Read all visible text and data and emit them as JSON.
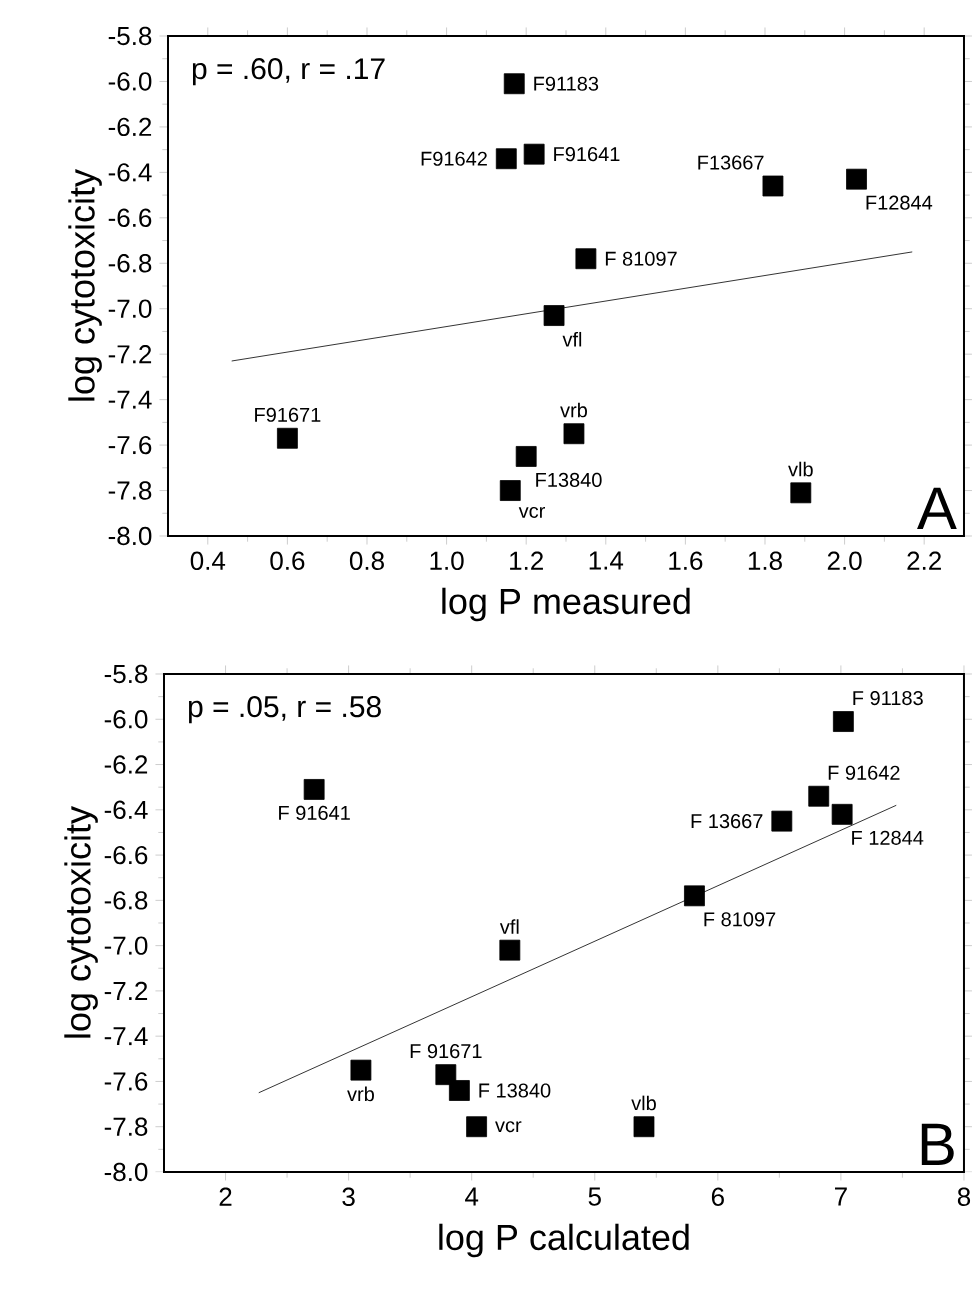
{
  "chart_data": [
    {
      "type": "scatter",
      "xlabel": "log P measured",
      "ylabel": "log cytotoxicity",
      "xlim": [
        0.3,
        2.3
      ],
      "xticks": [
        {
          "value": 0.4,
          "label": "0.4"
        },
        {
          "value": 0.6,
          "label": "0.6"
        },
        {
          "value": 0.8,
          "label": "0.8"
        },
        {
          "value": 1.0,
          "label": "1.0"
        },
        {
          "value": 1.2,
          "label": "1.2"
        },
        {
          "value": 1.4,
          "label": "1.4"
        },
        {
          "value": 1.6,
          "label": "1.6"
        },
        {
          "value": 1.8,
          "label": "1.8"
        },
        {
          "value": 2.0,
          "label": "2.0"
        },
        {
          "value": 2.2,
          "label": "2.2"
        }
      ],
      "ylim": [
        -8.0,
        -5.8
      ],
      "yticks": [
        {
          "value": -8.0,
          "label": "-8.0"
        },
        {
          "value": -7.8,
          "label": "-7.8"
        },
        {
          "value": -7.6,
          "label": "-7.6"
        },
        {
          "value": -7.4,
          "label": "-7.4"
        },
        {
          "value": -7.2,
          "label": "-7.2"
        },
        {
          "value": -7.0,
          "label": "-7.0"
        },
        {
          "value": -6.8,
          "label": "-6.8"
        },
        {
          "value": -6.6,
          "label": "-6.6"
        },
        {
          "value": -6.4,
          "label": "-6.4"
        },
        {
          "value": -6.2,
          "label": "-6.2"
        },
        {
          "value": -6.0,
          "label": "-6.0"
        },
        {
          "value": -5.8,
          "label": "-5.8"
        }
      ],
      "marker": "square",
      "series": [
        {
          "color": "#000000",
          "x": [
            1.17,
            1.15,
            1.22,
            1.82,
            2.03,
            1.35,
            1.27,
            0.6,
            1.32,
            1.2,
            1.16,
            1.89
          ],
          "values": [
            -6.01,
            -6.34,
            -6.32,
            -6.46,
            -6.43,
            -6.78,
            -7.03,
            -7.57,
            -7.55,
            -7.65,
            -7.8,
            -7.81
          ]
        },
        {
          "type": "line",
          "color": "#000000",
          "marker": "none",
          "x": [
            0.46,
            2.17
          ],
          "values": [
            -7.23,
            -6.75
          ]
        }
      ],
      "annotations": [
        "p = .60, r = .17",
        "A",
        {
          "text": "F91183",
          "x": 1.17,
          "y": -6.01
        },
        {
          "text": "F91642",
          "x": 1.15,
          "y": -6.34
        },
        {
          "text": "F91641",
          "x": 1.22,
          "y": -6.32
        },
        {
          "text": "F13667",
          "x": 1.82,
          "y": -6.46
        },
        {
          "text": "F12844",
          "x": 2.03,
          "y": -6.43
        },
        {
          "text": "F 81097",
          "x": 1.35,
          "y": -6.78
        },
        {
          "text": "vfl",
          "x": 1.27,
          "y": -7.03
        },
        {
          "text": "F91671",
          "x": 0.6,
          "y": -7.57
        },
        {
          "text": "vrb",
          "x": 1.32,
          "y": -7.55
        },
        {
          "text": "F13840",
          "x": 1.2,
          "y": -7.65
        },
        {
          "text": "vcr",
          "x": 1.16,
          "y": -7.8
        },
        {
          "text": "vlb",
          "x": 1.89,
          "y": -7.81
        }
      ]
    },
    {
      "type": "scatter",
      "xlabel": "log P calculated",
      "ylabel": "log cytotoxicity",
      "xlim": [
        1.5,
        8
      ],
      "xticks": [
        2,
        3,
        4,
        5,
        6,
        7,
        8
      ],
      "ylim": [
        -8.0,
        -5.8
      ],
      "yticks": [
        {
          "value": -8.0,
          "label": "-8.0"
        },
        {
          "value": -7.8,
          "label": "-7.8"
        },
        {
          "value": -7.6,
          "label": "-7.6"
        },
        {
          "value": -7.4,
          "label": "-7.4"
        },
        {
          "value": -7.2,
          "label": "-7.2"
        },
        {
          "value": -7.0,
          "label": "-7.0"
        },
        {
          "value": -6.8,
          "label": "-6.8"
        },
        {
          "value": -6.6,
          "label": "-6.6"
        },
        {
          "value": -6.4,
          "label": "-6.4"
        },
        {
          "value": -6.2,
          "label": "-6.2"
        },
        {
          "value": -6.0,
          "label": "-6.0"
        },
        {
          "value": -5.8,
          "label": "-5.8"
        }
      ],
      "marker": "square",
      "series": [
        {
          "color": "#000000",
          "x": [
            7.02,
            2.72,
            6.82,
            7.01,
            6.52,
            5.81,
            4.31,
            3.1,
            3.79,
            3.9,
            4.04,
            5.4
          ],
          "values": [
            -6.01,
            -6.31,
            -6.34,
            -6.42,
            -6.45,
            -6.78,
            -7.02,
            -7.55,
            -7.57,
            -7.64,
            -7.8,
            -7.8
          ]
        },
        {
          "type": "line",
          "color": "#000000",
          "marker": "none",
          "x": [
            2.27,
            7.45
          ],
          "values": [
            -7.65,
            -6.38
          ]
        }
      ],
      "annotations": [
        "p = .05, r = .58",
        "B",
        {
          "text": "F 91183",
          "x": 7.02,
          "y": -6.01
        },
        {
          "text": "F 91641",
          "x": 2.72,
          "y": -6.31
        },
        {
          "text": "F 91642",
          "x": 6.82,
          "y": -6.34
        },
        {
          "text": "F 12844",
          "x": 7.01,
          "y": -6.42
        },
        {
          "text": "F 13667",
          "x": 6.52,
          "y": -6.45
        },
        {
          "text": "F 81097",
          "x": 5.81,
          "y": -6.78
        },
        {
          "text": "vfl",
          "x": 4.31,
          "y": -7.02
        },
        {
          "text": "vrb",
          "x": 3.1,
          "y": -7.55
        },
        {
          "text": "F 91671",
          "x": 3.79,
          "y": -7.57
        },
        {
          "text": "F 13840",
          "x": 3.9,
          "y": -7.64
        },
        {
          "text": "vcr",
          "x": 4.04,
          "y": -7.8
        },
        {
          "text": "vlb",
          "x": 5.4,
          "y": -7.8
        }
      ]
    }
  ]
}
